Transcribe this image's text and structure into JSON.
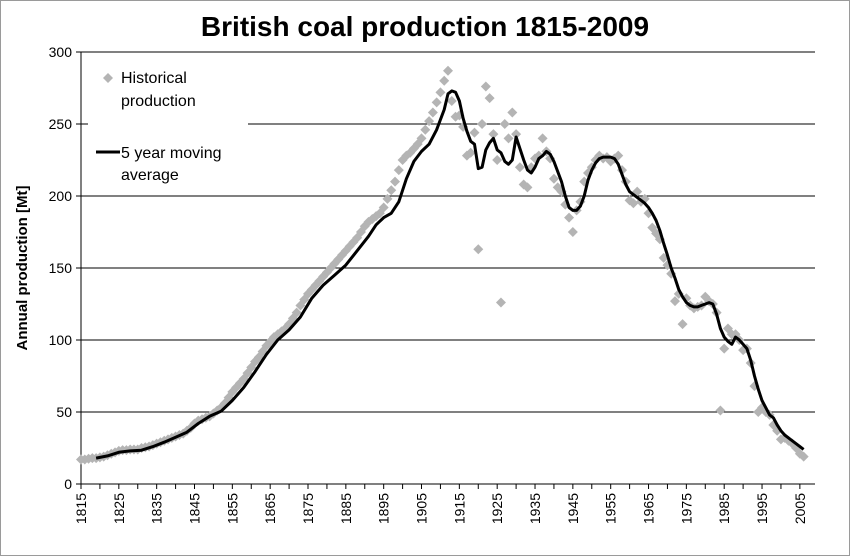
{
  "chart_data": {
    "type": "scatter",
    "title": "British coal production 1815-2009",
    "ylabel": "Annual production [Mt]",
    "xlabel": "",
    "xlim": [
      1815,
      2009
    ],
    "ylim": [
      0,
      300
    ],
    "yticks": [
      0,
      50,
      100,
      150,
      200,
      250,
      300
    ],
    "xticks": [
      1815,
      1825,
      1835,
      1845,
      1855,
      1865,
      1875,
      1885,
      1895,
      1905,
      1915,
      1925,
      1935,
      1945,
      1955,
      1965,
      1975,
      1985,
      1995,
      2005
    ],
    "grid": true,
    "legend_position": "top-left",
    "series": [
      {
        "name": "Historical production",
        "marker": "diamond",
        "color": "#b4b4b4",
        "points": [
          [
            1815,
            17
          ],
          [
            1816,
            17
          ],
          [
            1817,
            17.5
          ],
          [
            1818,
            18
          ],
          [
            1819,
            18
          ],
          [
            1820,
            18.5
          ],
          [
            1821,
            19
          ],
          [
            1822,
            20
          ],
          [
            1823,
            21
          ],
          [
            1824,
            22
          ],
          [
            1825,
            23
          ],
          [
            1826,
            23.5
          ],
          [
            1827,
            23.5
          ],
          [
            1828,
            24
          ],
          [
            1829,
            24
          ],
          [
            1830,
            24
          ],
          [
            1831,
            25
          ],
          [
            1832,
            25.5
          ],
          [
            1833,
            26
          ],
          [
            1834,
            27
          ],
          [
            1835,
            28
          ],
          [
            1836,
            29
          ],
          [
            1837,
            30
          ],
          [
            1838,
            31
          ],
          [
            1839,
            32
          ],
          [
            1840,
            33
          ],
          [
            1841,
            34
          ],
          [
            1842,
            35
          ],
          [
            1843,
            37
          ],
          [
            1844,
            39
          ],
          [
            1845,
            42
          ],
          [
            1846,
            44
          ],
          [
            1847,
            45
          ],
          [
            1848,
            46
          ],
          [
            1849,
            47
          ],
          [
            1850,
            49
          ],
          [
            1851,
            51
          ],
          [
            1852,
            53
          ],
          [
            1853,
            56
          ],
          [
            1854,
            60
          ],
          [
            1855,
            64
          ],
          [
            1856,
            67
          ],
          [
            1857,
            70
          ],
          [
            1858,
            73
          ],
          [
            1859,
            77
          ],
          [
            1860,
            81
          ],
          [
            1861,
            85
          ],
          [
            1862,
            88
          ],
          [
            1863,
            92
          ],
          [
            1864,
            96
          ],
          [
            1865,
            99
          ],
          [
            1866,
            102
          ],
          [
            1867,
            104
          ],
          [
            1868,
            106
          ],
          [
            1869,
            108
          ],
          [
            1870,
            111
          ],
          [
            1871,
            115
          ],
          [
            1872,
            119
          ],
          [
            1873,
            124
          ],
          [
            1874,
            128
          ],
          [
            1875,
            132
          ],
          [
            1876,
            135
          ],
          [
            1877,
            138
          ],
          [
            1878,
            141
          ],
          [
            1879,
            144
          ],
          [
            1880,
            147
          ],
          [
            1881,
            150
          ],
          [
            1882,
            153
          ],
          [
            1883,
            156
          ],
          [
            1884,
            159
          ],
          [
            1885,
            162
          ],
          [
            1886,
            165
          ],
          [
            1887,
            168
          ],
          [
            1888,
            171
          ],
          [
            1889,
            175
          ],
          [
            1890,
            179
          ],
          [
            1891,
            182
          ],
          [
            1892,
            184
          ],
          [
            1893,
            186
          ],
          [
            1894,
            188
          ],
          [
            1895,
            192
          ],
          [
            1896,
            198
          ],
          [
            1897,
            204
          ],
          [
            1898,
            210
          ],
          [
            1899,
            218
          ],
          [
            1900,
            225
          ],
          [
            1901,
            228
          ],
          [
            1902,
            230
          ],
          [
            1903,
            233
          ],
          [
            1904,
            236
          ],
          [
            1905,
            240
          ],
          [
            1906,
            246
          ],
          [
            1907,
            252
          ],
          [
            1908,
            258
          ],
          [
            1909,
            265
          ],
          [
            1910,
            272
          ],
          [
            1911,
            280
          ],
          [
            1912,
            287
          ],
          [
            1913,
            266
          ],
          [
            1914,
            255
          ],
          [
            1915,
            256
          ],
          [
            1916,
            248
          ],
          [
            1917,
            228
          ],
          [
            1918,
            230
          ],
          [
            1919,
            244
          ],
          [
            1920,
            163
          ],
          [
            1921,
            250
          ],
          [
            1922,
            276
          ],
          [
            1923,
            268
          ],
          [
            1924,
            243
          ],
          [
            1925,
            225
          ],
          [
            1926,
            126
          ],
          [
            1927,
            250
          ],
          [
            1928,
            240
          ],
          [
            1929,
            258
          ],
          [
            1930,
            243
          ],
          [
            1931,
            220
          ],
          [
            1932,
            208
          ],
          [
            1933,
            206
          ],
          [
            1934,
            220
          ],
          [
            1935,
            226
          ],
          [
            1936,
            228
          ],
          [
            1937,
            240
          ],
          [
            1938,
            231
          ],
          [
            1939,
            226
          ],
          [
            1940,
            212
          ],
          [
            1941,
            206
          ],
          [
            1942,
            203
          ],
          [
            1943,
            194
          ],
          [
            1944,
            185
          ],
          [
            1945,
            175
          ],
          [
            1946,
            190
          ],
          [
            1947,
            196
          ],
          [
            1948,
            210
          ],
          [
            1949,
            216
          ],
          [
            1950,
            220
          ],
          [
            1951,
            225
          ],
          [
            1952,
            228
          ],
          [
            1953,
            226
          ],
          [
            1954,
            227
          ],
          [
            1955,
            224
          ],
          [
            1956,
            226
          ],
          [
            1957,
            228
          ],
          [
            1958,
            218
          ],
          [
            1959,
            210
          ],
          [
            1960,
            197
          ],
          [
            1961,
            195
          ],
          [
            1962,
            203
          ],
          [
            1963,
            196
          ],
          [
            1964,
            198
          ],
          [
            1965,
            188
          ],
          [
            1966,
            178
          ],
          [
            1967,
            174
          ],
          [
            1968,
            170
          ],
          [
            1969,
            157
          ],
          [
            1970,
            152
          ],
          [
            1971,
            146
          ],
          [
            1972,
            127
          ],
          [
            1973,
            132
          ],
          [
            1974,
            111
          ],
          [
            1975,
            129
          ],
          [
            1976,
            124
          ],
          [
            1977,
            122
          ],
          [
            1978,
            123
          ],
          [
            1979,
            124
          ],
          [
            1980,
            130
          ],
          [
            1981,
            127
          ],
          [
            1982,
            125
          ],
          [
            1983,
            119
          ],
          [
            1984,
            51
          ],
          [
            1985,
            94
          ],
          [
            1986,
            108
          ],
          [
            1987,
            104
          ],
          [
            1988,
            104
          ],
          [
            1989,
            100
          ],
          [
            1990,
            93
          ],
          [
            1991,
            94
          ],
          [
            1992,
            84
          ],
          [
            1993,
            68
          ],
          [
            1994,
            50
          ],
          [
            1995,
            53
          ],
          [
            1996,
            50
          ],
          [
            1997,
            48
          ],
          [
            1998,
            41
          ],
          [
            1999,
            37
          ],
          [
            2000,
            31
          ],
          [
            2001,
            32
          ],
          [
            2002,
            30
          ],
          [
            2003,
            28
          ],
          [
            2004,
            25
          ],
          [
            2005,
            21
          ],
          [
            2006,
            19
          ]
        ]
      },
      {
        "name": "5 year moving average",
        "line": true,
        "color": "#000000",
        "points": [
          [
            1819,
            18
          ],
          [
            1822,
            19.5
          ],
          [
            1825,
            22
          ],
          [
            1828,
            23
          ],
          [
            1831,
            23.5
          ],
          [
            1834,
            26
          ],
          [
            1837,
            29
          ],
          [
            1840,
            32.5
          ],
          [
            1843,
            36
          ],
          [
            1846,
            42
          ],
          [
            1849,
            47
          ],
          [
            1852,
            50.5
          ],
          [
            1855,
            58
          ],
          [
            1858,
            67
          ],
          [
            1861,
            78
          ],
          [
            1864,
            90
          ],
          [
            1867,
            100
          ],
          [
            1870,
            107
          ],
          [
            1873,
            116
          ],
          [
            1876,
            129
          ],
          [
            1879,
            138
          ],
          [
            1882,
            145
          ],
          [
            1885,
            152
          ],
          [
            1888,
            162
          ],
          [
            1891,
            172
          ],
          [
            1893,
            180
          ],
          [
            1895,
            185
          ],
          [
            1897,
            188
          ],
          [
            1899,
            196
          ],
          [
            1901,
            212
          ],
          [
            1903,
            224
          ],
          [
            1905,
            231
          ],
          [
            1907,
            236
          ],
          [
            1909,
            246
          ],
          [
            1911,
            260
          ],
          [
            1912,
            271
          ],
          [
            1913,
            273
          ],
          [
            1914,
            272
          ],
          [
            1915,
            266
          ],
          [
            1916,
            254
          ],
          [
            1917,
            245
          ],
          [
            1918,
            238
          ],
          [
            1919,
            236
          ],
          [
            1920,
            219
          ],
          [
            1921,
            220
          ],
          [
            1922,
            232
          ],
          [
            1923,
            237
          ],
          [
            1924,
            240
          ],
          [
            1925,
            232
          ],
          [
            1926,
            230
          ],
          [
            1927,
            224
          ],
          [
            1928,
            222
          ],
          [
            1929,
            225
          ],
          [
            1930,
            241
          ],
          [
            1931,
            233
          ],
          [
            1932,
            225
          ],
          [
            1933,
            218
          ],
          [
            1934,
            216
          ],
          [
            1935,
            220
          ],
          [
            1936,
            226
          ],
          [
            1937,
            228
          ],
          [
            1938,
            231
          ],
          [
            1939,
            229
          ],
          [
            1940,
            224
          ],
          [
            1941,
            217
          ],
          [
            1942,
            210
          ],
          [
            1943,
            200
          ],
          [
            1944,
            192
          ],
          [
            1945,
            190
          ],
          [
            1946,
            190
          ],
          [
            1947,
            193
          ],
          [
            1948,
            200
          ],
          [
            1949,
            211
          ],
          [
            1950,
            218
          ],
          [
            1951,
            223
          ],
          [
            1952,
            226
          ],
          [
            1953,
            227
          ],
          [
            1954,
            227
          ],
          [
            1955,
            227
          ],
          [
            1956,
            226
          ],
          [
            1957,
            222
          ],
          [
            1958,
            215
          ],
          [
            1959,
            208
          ],
          [
            1960,
            203
          ],
          [
            1961,
            201
          ],
          [
            1962,
            199
          ],
          [
            1963,
            197
          ],
          [
            1964,
            195
          ],
          [
            1965,
            192
          ],
          [
            1966,
            188
          ],
          [
            1967,
            183
          ],
          [
            1968,
            176
          ],
          [
            1969,
            167
          ],
          [
            1970,
            159
          ],
          [
            1971,
            150
          ],
          [
            1972,
            143
          ],
          [
            1973,
            135
          ],
          [
            1974,
            130
          ],
          [
            1975,
            126
          ],
          [
            1976,
            124
          ],
          [
            1977,
            123
          ],
          [
            1978,
            123
          ],
          [
            1979,
            124
          ],
          [
            1980,
            125
          ],
          [
            1981,
            126
          ],
          [
            1982,
            125
          ],
          [
            1983,
            118
          ],
          [
            1984,
            108
          ],
          [
            1985,
            102
          ],
          [
            1986,
            99
          ],
          [
            1987,
            97
          ],
          [
            1988,
            102
          ],
          [
            1989,
            100
          ],
          [
            1990,
            97
          ],
          [
            1991,
            94
          ],
          [
            1992,
            86
          ],
          [
            1993,
            75
          ],
          [
            1994,
            66
          ],
          [
            1995,
            58
          ],
          [
            1996,
            53
          ],
          [
            1997,
            48
          ],
          [
            1998,
            46
          ],
          [
            1999,
            41
          ],
          [
            2000,
            37
          ],
          [
            2001,
            34
          ],
          [
            2002,
            32
          ],
          [
            2003,
            30
          ],
          [
            2004,
            28
          ],
          [
            2005,
            26
          ],
          [
            2006,
            24
          ]
        ]
      }
    ]
  }
}
